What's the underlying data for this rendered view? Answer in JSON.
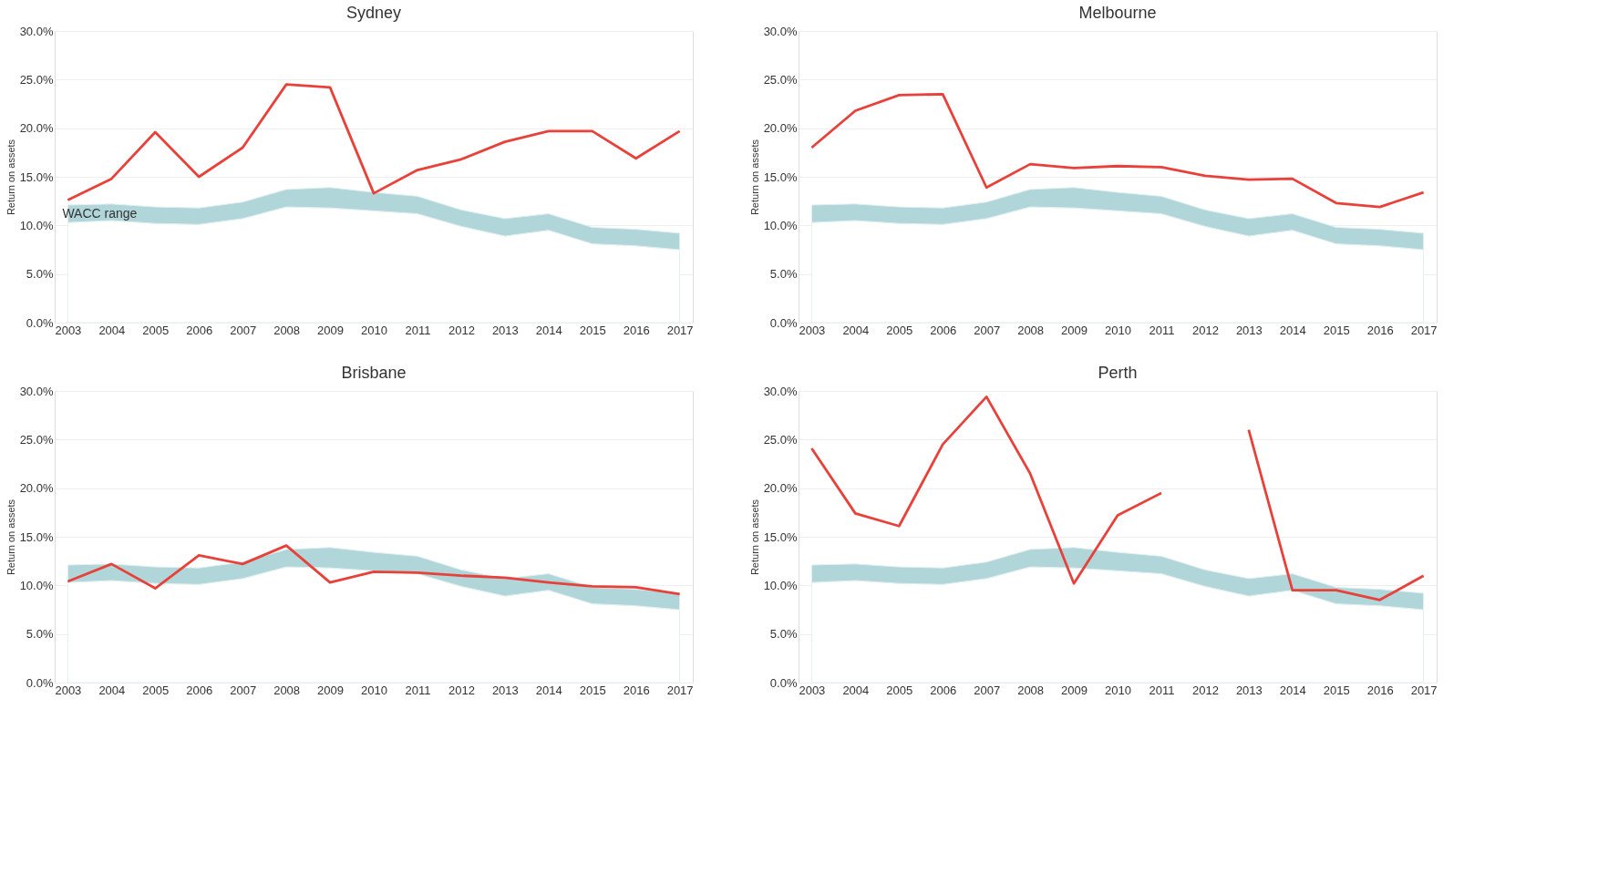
{
  "chart_data": [
    {
      "type": "area",
      "stacked": true,
      "title": "Sydney",
      "ylabel": "Return on assets",
      "categories": [
        "2003",
        "2004",
        "2005",
        "2006",
        "2007",
        "2008",
        "2009",
        "2010",
        "2011",
        "2012",
        "2013",
        "2014",
        "2015",
        "2016",
        "2017"
      ],
      "ylim": [
        0,
        30
      ],
      "yticks": [
        {
          "value": 0,
          "label": "0.0%"
        },
        {
          "value": 5,
          "label": "5.0%"
        },
        {
          "value": 10,
          "label": "10.0%"
        },
        {
          "value": 15,
          "label": "15.0%"
        },
        {
          "value": 20,
          "label": "20.0%"
        },
        {
          "value": 25,
          "label": "25.0%"
        },
        {
          "value": 30,
          "label": "30.0%"
        }
      ],
      "grid": "y",
      "legend": false,
      "series": [
        {
          "color": "#ffffff",
          "values": [
            10.3,
            10.5,
            10.2,
            10.1,
            10.7,
            11.9,
            11.8,
            11.5,
            11.2,
            9.9,
            8.9,
            9.5,
            8.1,
            7.9,
            7.5
          ]
        },
        {
          "name": "WACC range",
          "color": "#b0d6da",
          "values": [
            1.8,
            1.7,
            1.7,
            1.7,
            1.7,
            1.8,
            2.1,
            1.9,
            1.8,
            1.7,
            1.8,
            1.7,
            1.7,
            1.7,
            1.7
          ]
        },
        {
          "type": "line",
          "color": "#e8413a",
          "values": [
            12.6,
            14.8,
            19.6,
            15.0,
            18.0,
            24.5,
            24.2,
            13.3,
            15.7,
            16.8,
            18.6,
            19.7,
            19.7,
            16.9,
            19.7
          ]
        }
      ]
    },
    {
      "type": "area",
      "stacked": true,
      "title": "Melbourne",
      "ylabel": "Return on assets",
      "categories": [
        "2003",
        "2004",
        "2005",
        "2006",
        "2007",
        "2008",
        "2009",
        "2010",
        "2011",
        "2012",
        "2013",
        "2014",
        "2015",
        "2016",
        "2017"
      ],
      "ylim": [
        0,
        30
      ],
      "yticks": [
        {
          "value": 0,
          "label": "0.0%"
        },
        {
          "value": 5,
          "label": "5.0%"
        },
        {
          "value": 10,
          "label": "10.0%"
        },
        {
          "value": 15,
          "label": "15.0%"
        },
        {
          "value": 20,
          "label": "20.0%"
        },
        {
          "value": 25,
          "label": "25.0%"
        },
        {
          "value": 30,
          "label": "30.0%"
        }
      ],
      "grid": "y",
      "legend": false,
      "series": [
        {
          "color": "#ffffff",
          "values": [
            10.3,
            10.5,
            10.2,
            10.1,
            10.7,
            11.9,
            11.8,
            11.5,
            11.2,
            9.9,
            8.9,
            9.5,
            8.1,
            7.9,
            7.5
          ]
        },
        {
          "color": "#b0d6da",
          "values": [
            1.8,
            1.7,
            1.7,
            1.7,
            1.7,
            1.8,
            2.1,
            1.9,
            1.8,
            1.7,
            1.8,
            1.7,
            1.7,
            1.7,
            1.7
          ]
        },
        {
          "type": "line",
          "color": "#e8413a",
          "values": [
            18.0,
            21.8,
            23.4,
            23.5,
            13.9,
            16.3,
            15.9,
            16.1,
            16.0,
            15.1,
            14.7,
            14.8,
            12.3,
            11.9,
            13.4
          ]
        }
      ]
    },
    {
      "type": "area",
      "stacked": true,
      "title": "Brisbane",
      "ylabel": "Return on assets",
      "categories": [
        "2003",
        "2004",
        "2005",
        "2006",
        "2007",
        "2008",
        "2009",
        "2010",
        "2011",
        "2012",
        "2013",
        "2014",
        "2015",
        "2016",
        "2017"
      ],
      "ylim": [
        0,
        30
      ],
      "yticks": [
        {
          "value": 0,
          "label": "0.0%"
        },
        {
          "value": 5,
          "label": "5.0%"
        },
        {
          "value": 10,
          "label": "10.0%"
        },
        {
          "value": 15,
          "label": "15.0%"
        },
        {
          "value": 20,
          "label": "20.0%"
        },
        {
          "value": 25,
          "label": "25.0%"
        },
        {
          "value": 30,
          "label": "30.0%"
        }
      ],
      "grid": "y",
      "legend": false,
      "series": [
        {
          "color": "#ffffff",
          "values": [
            10.3,
            10.5,
            10.2,
            10.1,
            10.7,
            11.9,
            11.8,
            11.5,
            11.2,
            9.9,
            8.9,
            9.5,
            8.1,
            7.9,
            7.5
          ]
        },
        {
          "color": "#b0d6da",
          "values": [
            1.8,
            1.7,
            1.7,
            1.7,
            1.7,
            1.8,
            2.1,
            1.9,
            1.8,
            1.7,
            1.8,
            1.7,
            1.7,
            1.7,
            1.7
          ]
        },
        {
          "type": "line",
          "color": "#e8413a",
          "values": [
            10.4,
            12.2,
            9.7,
            13.1,
            12.2,
            14.1,
            10.3,
            11.4,
            11.3,
            11.0,
            10.8,
            10.3,
            9.9,
            9.8,
            9.1
          ]
        }
      ]
    },
    {
      "type": "area",
      "stacked": true,
      "title": "Perth",
      "ylabel": "Return on assets",
      "categories": [
        "2003",
        "2004",
        "2005",
        "2006",
        "2007",
        "2008",
        "2009",
        "2010",
        "2011",
        "2012",
        "2013",
        "2014",
        "2015",
        "2016",
        "2017"
      ],
      "ylim": [
        0,
        30
      ],
      "yticks": [
        {
          "value": 0,
          "label": "0.0%"
        },
        {
          "value": 5,
          "label": "5.0%"
        },
        {
          "value": 10,
          "label": "10.0%"
        },
        {
          "value": 15,
          "label": "15.0%"
        },
        {
          "value": 20,
          "label": "20.0%"
        },
        {
          "value": 25,
          "label": "25.0%"
        },
        {
          "value": 30,
          "label": "30.0%"
        }
      ],
      "grid": "y",
      "legend": false,
      "series": [
        {
          "color": "#ffffff",
          "values": [
            10.3,
            10.5,
            10.2,
            10.1,
            10.7,
            11.9,
            11.8,
            11.5,
            11.2,
            9.9,
            8.9,
            9.5,
            8.1,
            7.9,
            7.5
          ]
        },
        {
          "color": "#b0d6da",
          "values": [
            1.8,
            1.7,
            1.7,
            1.7,
            1.7,
            1.8,
            2.1,
            1.9,
            1.8,
            1.7,
            1.8,
            1.7,
            1.7,
            1.7,
            1.7
          ]
        },
        {
          "type": "line",
          "color": "#e8413a",
          "values": [
            24.1,
            17.4,
            16.1,
            24.5,
            29.4,
            21.5,
            10.2,
            17.2,
            19.5,
            null,
            26.0,
            9.5,
            9.5,
            8.5,
            11.0
          ]
        }
      ]
    }
  ]
}
